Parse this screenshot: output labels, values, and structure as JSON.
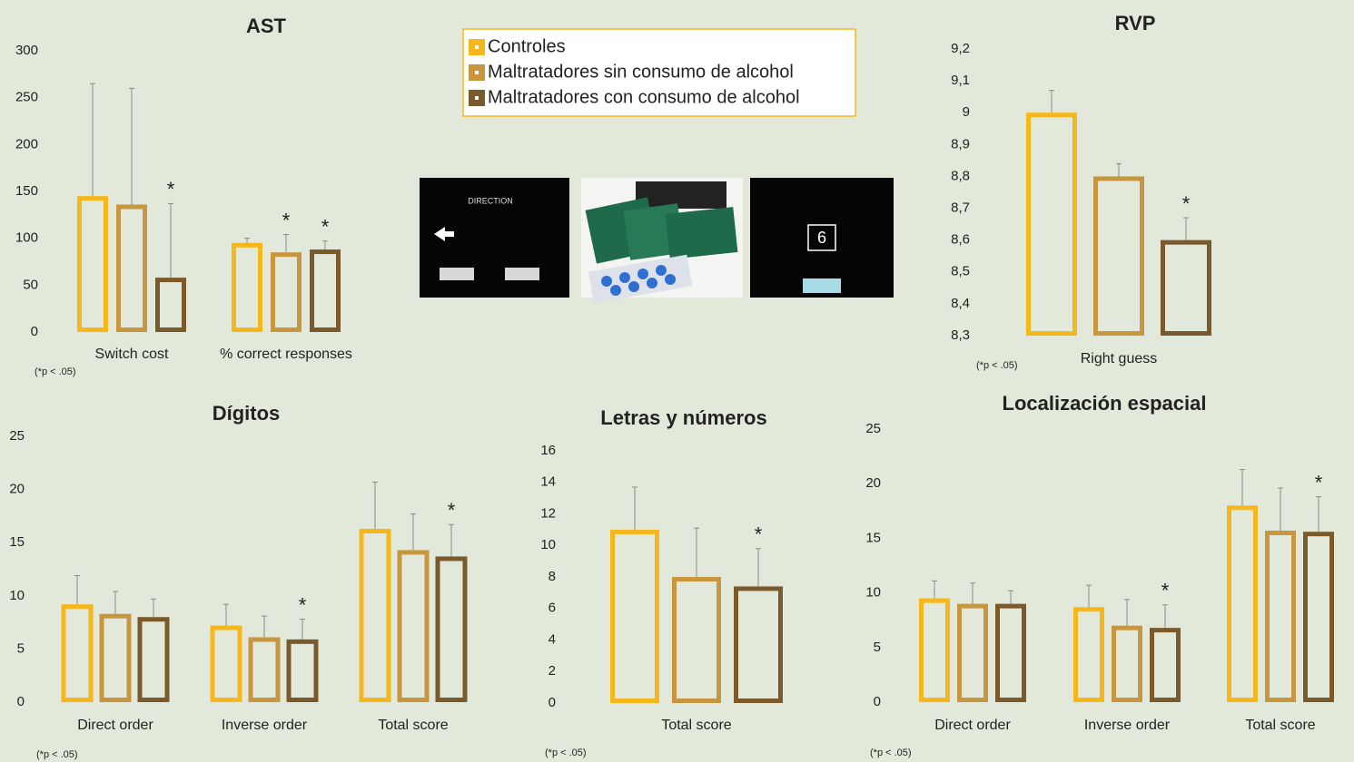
{
  "legend": {
    "items": [
      {
        "name": "Controles",
        "color": "#f6b71c"
      },
      {
        "name": "Maltratadores sin consumo de alcohol",
        "color": "#c8963e"
      },
      {
        "name": "Maltratadores con consumo de alcohol",
        "color": "#7a5a2b"
      }
    ]
  },
  "images": {
    "ast_label": "DIRECTION",
    "rvp_digit": "6"
  },
  "chart_data": [
    {
      "type": "bar",
      "title": "AST",
      "note": "(*p < .05)",
      "categories": [
        "Switch cost",
        "% correct responses"
      ],
      "ylim": [
        0,
        300
      ],
      "yticks": [
        0,
        50,
        100,
        150,
        200,
        250,
        300
      ],
      "series": [
        {
          "color": "#f6b71c",
          "values": [
            145,
            95
          ],
          "errors": [
            120,
            5
          ],
          "annotations": [
            null,
            null
          ]
        },
        {
          "color": "#c8963e",
          "values": [
            136,
            85
          ],
          "errors": [
            124,
            19
          ],
          "annotations": [
            null,
            "*"
          ]
        },
        {
          "color": "#7a5a2b",
          "values": [
            58,
            88
          ],
          "errors": [
            79,
            9
          ],
          "annotations": [
            "*",
            "*"
          ]
        }
      ]
    },
    {
      "type": "bar",
      "title": "RVP",
      "note": "(*p < .05)",
      "categories": [
        "Right guess"
      ],
      "ylim": [
        8.3,
        9.2
      ],
      "yticks": [
        {
          "value": 8.3,
          "label": "8,3"
        },
        {
          "value": 8.4,
          "label": "8,4"
        },
        {
          "value": 8.5,
          "label": "8,5"
        },
        {
          "value": 8.6,
          "label": "8,6"
        },
        {
          "value": 8.7,
          "label": "8,7"
        },
        {
          "value": 8.8,
          "label": "8,8"
        },
        {
          "value": 8.9,
          "label": "8,9"
        },
        9,
        {
          "value": 9.1,
          "label": "9,1"
        },
        {
          "value": 9.2,
          "label": "9,2"
        }
      ],
      "series": [
        {
          "color": "#f6b71c",
          "values": [
            9.0
          ],
          "errors": [
            0.07
          ],
          "annotations": [
            null
          ]
        },
        {
          "color": "#c8963e",
          "values": [
            8.8
          ],
          "errors": [
            0.04
          ],
          "annotations": [
            null
          ]
        },
        {
          "color": "#7a5a2b",
          "values": [
            8.6
          ],
          "errors": [
            0.07
          ],
          "annotations": [
            "*"
          ]
        }
      ]
    },
    {
      "type": "bar",
      "title": "Dígitos",
      "note": "(*p < .05)",
      "categories": [
        "Direct order",
        "Inverse order",
        "Total score"
      ],
      "ylim": [
        0,
        25
      ],
      "yticks": [
        0,
        5,
        10,
        15,
        20,
        25
      ],
      "series": [
        {
          "color": "#f6b71c",
          "values": [
            9.2,
            7.2,
            16.3
          ],
          "errors": [
            2.7,
            2.0,
            4.4
          ],
          "annotations": [
            null,
            null,
            null
          ]
        },
        {
          "color": "#c8963e",
          "values": [
            8.3,
            6.1,
            14.3
          ],
          "errors": [
            2.1,
            2.0,
            3.4
          ],
          "annotations": [
            null,
            null,
            null
          ]
        },
        {
          "color": "#7a5a2b",
          "values": [
            8.0,
            5.9,
            13.7
          ],
          "errors": [
            1.7,
            1.9,
            3.0
          ],
          "annotations": [
            null,
            "*",
            "*"
          ]
        }
      ]
    },
    {
      "type": "bar",
      "title": "Letras y números",
      "note": "(*p < .05)",
      "categories": [
        "Total score"
      ],
      "ylim": [
        0,
        16
      ],
      "yticks": [
        0,
        2,
        4,
        6,
        8,
        10,
        12,
        14,
        16
      ],
      "series": [
        {
          "color": "#f6b71c",
          "values": [
            11.0
          ],
          "errors": [
            2.7
          ],
          "annotations": [
            null
          ]
        },
        {
          "color": "#c8963e",
          "values": [
            8.0
          ],
          "errors": [
            3.1
          ],
          "annotations": [
            null
          ]
        },
        {
          "color": "#7a5a2b",
          "values": [
            7.4
          ],
          "errors": [
            2.4
          ],
          "annotations": [
            "*"
          ]
        }
      ]
    },
    {
      "type": "bar",
      "title": "Localización espacial",
      "note": "(*p < .05)",
      "categories": [
        "Direct order",
        "Inverse order",
        "Total score"
      ],
      "ylim": [
        0,
        25
      ],
      "yticks": [
        0,
        5,
        10,
        15,
        20,
        25
      ],
      "series": [
        {
          "color": "#f6b71c",
          "values": [
            9.5,
            8.7,
            18.0
          ],
          "errors": [
            1.6,
            2.0,
            3.3
          ],
          "annotations": [
            null,
            null,
            null
          ]
        },
        {
          "color": "#c8963e",
          "values": [
            9.0,
            7.0,
            15.7
          ],
          "errors": [
            1.9,
            2.4,
            3.9
          ],
          "annotations": [
            null,
            null,
            null
          ]
        },
        {
          "color": "#7a5a2b",
          "values": [
            9.0,
            6.8,
            15.6
          ],
          "errors": [
            1.2,
            2.1,
            3.2
          ],
          "annotations": [
            null,
            "*",
            "*"
          ]
        }
      ]
    }
  ]
}
